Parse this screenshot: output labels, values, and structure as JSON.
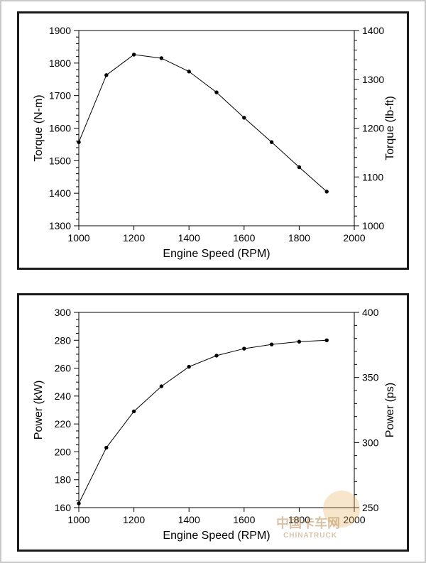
{
  "watermark": {
    "line1": "中国卡车网",
    "line2": "CHINATRUCK"
  },
  "torque_chart": {
    "type": "line",
    "xlabel": "Engine Speed (RPM)",
    "ylabel_left": "Torque (N-m)",
    "ylabel_right": "Torque (lb-ft)",
    "xlim": [
      1000,
      2000
    ],
    "xtick_step": 200,
    "ylim_left": [
      1300,
      1900
    ],
    "ytick_left_step": 100,
    "ylim_right": [
      1000,
      1400
    ],
    "ytick_right_step": 100,
    "minor_ticks_left": 4,
    "minor_ticks_right": 4,
    "x": [
      1000,
      1100,
      1200,
      1300,
      1400,
      1500,
      1600,
      1700,
      1800,
      1900
    ],
    "y": [
      1557,
      1763,
      1826,
      1815,
      1774,
      1710,
      1632,
      1557,
      1480,
      1405
    ],
    "marker_radius": 2.7,
    "line_color": "#000000",
    "background_color": "#ffffff",
    "grid_color": "#000000",
    "axis_label_fontsize": 16,
    "tick_fontsize": 14
  },
  "power_chart": {
    "type": "line",
    "xlabel": "Engine Speed (RPM)",
    "ylabel_left": "Power (kW)",
    "ylabel_right": "Power (ps)",
    "xlim": [
      1000,
      2000
    ],
    "xtick_step": 200,
    "ylim_left": [
      160,
      300
    ],
    "ytick_left_step": 20,
    "ylim_right": [
      250,
      400
    ],
    "ytick_right_step": 50,
    "minor_ticks_left": 3,
    "minor_ticks_right": 4,
    "x": [
      1000,
      1100,
      1200,
      1300,
      1400,
      1500,
      1600,
      1700,
      1800,
      1900
    ],
    "y": [
      163,
      203,
      229,
      247,
      261,
      269,
      274,
      277,
      279,
      280
    ],
    "marker_radius": 2.7,
    "line_color": "#000000",
    "background_color": "#ffffff",
    "grid_color": "#000000",
    "axis_label_fontsize": 16,
    "tick_fontsize": 14
  }
}
